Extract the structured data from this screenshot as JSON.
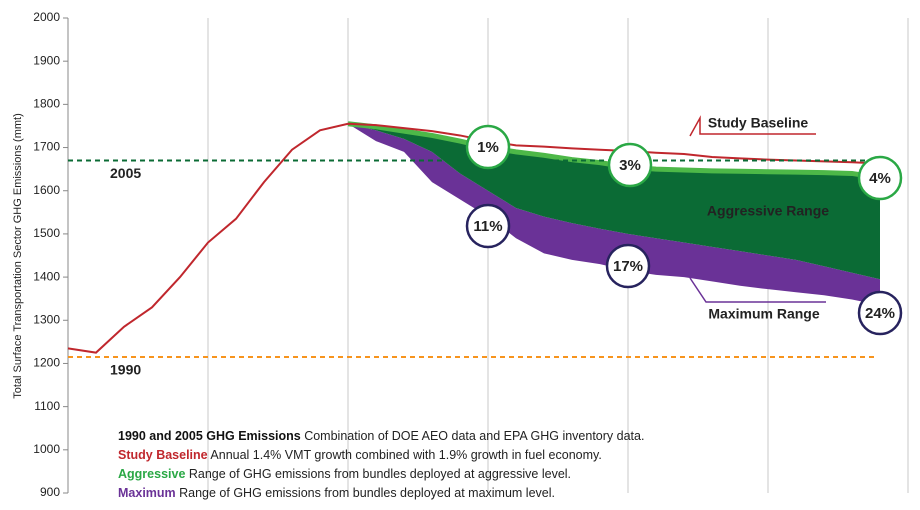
{
  "chart_data": {
    "type": "line",
    "y_label": "Total Surface Transportation Sector GHG Emissions (mmt)",
    "ylim": [
      900,
      2000
    ],
    "yticks": [
      900,
      1000,
      1100,
      1200,
      1300,
      1400,
      1500,
      1600,
      1700,
      1800,
      1900,
      2000
    ],
    "series": [
      {
        "name": "Study Baseline",
        "color": "#c0272d",
        "values": [
          1235,
          1225,
          1285,
          1330,
          1400,
          1480,
          1535,
          1620,
          1695,
          1740,
          1755,
          1752,
          1745,
          1738,
          1728,
          1715,
          1705,
          1702,
          1698,
          1695,
          1692,
          1688,
          1685,
          1678,
          1675,
          1672,
          1670,
          1668,
          1666,
          1663
        ]
      },
      {
        "name": "Aggressive Range",
        "color": "#0b6b35",
        "edge_color": "#4db848",
        "upper": [
          null,
          null,
          null,
          null,
          null,
          null,
          null,
          null,
          null,
          null,
          1755,
          1748,
          1738,
          1728,
          1715,
          1700,
          1690,
          1682,
          1672,
          1665,
          1655,
          1650,
          1648,
          1646,
          1645,
          1644,
          1643,
          1642,
          1640,
          1630
        ],
        "lower": [
          null,
          null,
          null,
          null,
          null,
          null,
          null,
          null,
          null,
          null,
          1755,
          1740,
          1720,
          1690,
          1640,
          1600,
          1560,
          1540,
          1525,
          1512,
          1500,
          1490,
          1480,
          1470,
          1460,
          1450,
          1440,
          1425,
          1410,
          1395
        ]
      },
      {
        "name": "Maximum Range",
        "color": "#6a3297",
        "upper": [
          null,
          null,
          null,
          null,
          null,
          null,
          null,
          null,
          null,
          null,
          1755,
          1740,
          1720,
          1690,
          1640,
          1600,
          1560,
          1540,
          1525,
          1512,
          1500,
          1490,
          1480,
          1470,
          1460,
          1450,
          1440,
          1425,
          1410,
          1395
        ],
        "lower": [
          null,
          null,
          null,
          null,
          null,
          null,
          null,
          null,
          null,
          null,
          1755,
          1715,
          1690,
          1620,
          1580,
          1540,
          1490,
          1455,
          1440,
          1430,
          1415,
          1405,
          1400,
          1390,
          1380,
          1372,
          1365,
          1358,
          1348,
          1335
        ]
      }
    ],
    "reference_lines": [
      {
        "label": "2005",
        "value": 1670,
        "color": "#0b6b35"
      },
      {
        "label": "1990",
        "value": 1215,
        "color": "#f7941d"
      }
    ],
    "annotations": [
      "1%",
      "3%",
      "4%",
      "11%",
      "17%",
      "24%"
    ],
    "notes": [
      {
        "term": "1990 and 2005 GHG Emissions",
        "text": " Combination of DOE AEO data and EPA GHG inventory data.",
        "color": "#111111"
      },
      {
        "term": "Study Baseline",
        "text": " Annual 1.4% VMT growth combined with 1.9% growth in fuel economy.",
        "color": "#c0272d"
      },
      {
        "term": "Aggressive",
        "text": " Range of GHG emissions from bundles deployed at aggressive level.",
        "color": "#2aa845"
      },
      {
        "term": "Maximum",
        "text": " Range of GHG emissions from bundles deployed at maximum level.",
        "color": "#6a3297"
      }
    ]
  }
}
